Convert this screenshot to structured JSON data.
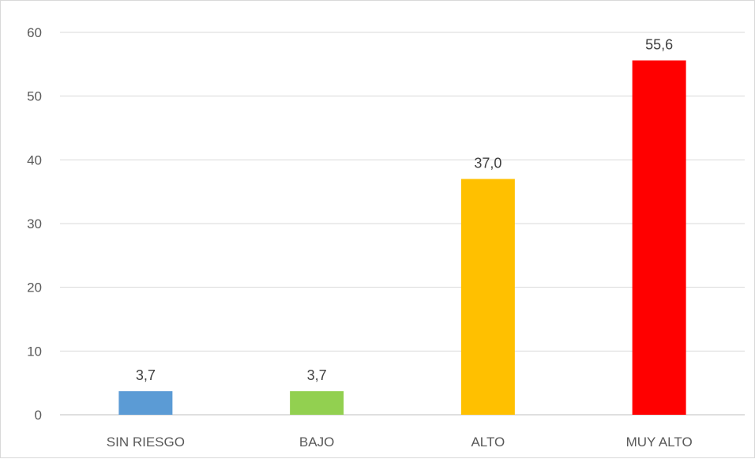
{
  "chart_data": {
    "type": "bar",
    "categories": [
      "SIN RIESGO",
      "BAJO",
      "ALTO",
      "MUY ALTO"
    ],
    "values": [
      3.7,
      3.7,
      37.0,
      55.6
    ],
    "data_labels": [
      "3,7",
      "3,7",
      "37,0",
      "55,6"
    ],
    "colors": [
      "#5B9BD5",
      "#92D050",
      "#FFC000",
      "#FF0000"
    ],
    "ylim": [
      0,
      60
    ],
    "yticks": [
      0,
      10,
      20,
      30,
      40,
      50,
      60
    ],
    "grid": true,
    "legend": "none",
    "title": "",
    "xlabel": "",
    "ylabel": ""
  }
}
